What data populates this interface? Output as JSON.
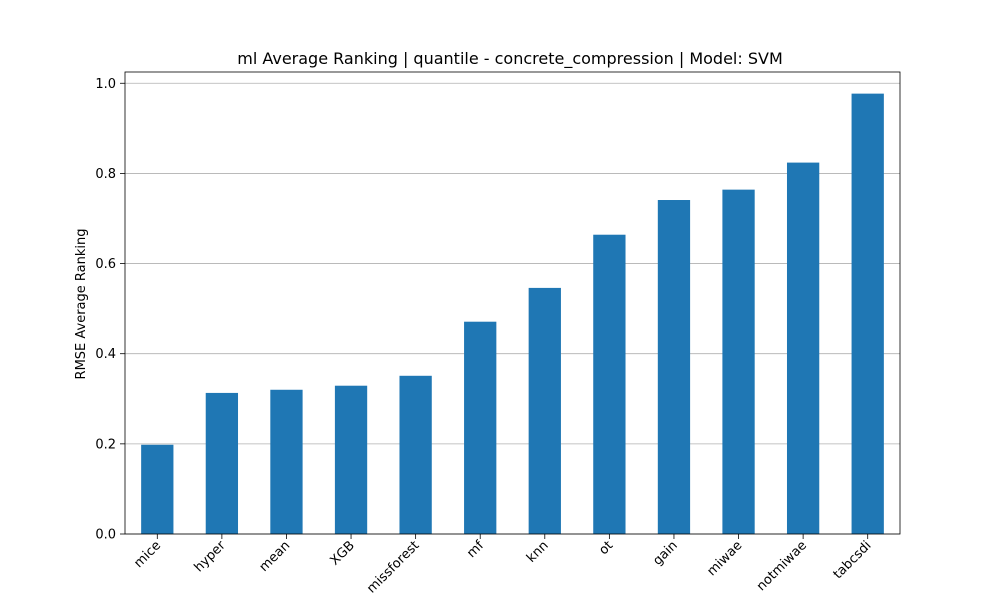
{
  "chart_data": {
    "type": "bar",
    "title": "ml Average Ranking | quantile - concrete_compression | Model: SVM",
    "xlabel": "",
    "ylabel": "RMSE Average Ranking",
    "categories": [
      "mice",
      "hyper",
      "mean",
      "XGB",
      "missforest",
      "mf",
      "knn",
      "ot",
      "gain",
      "miwae",
      "notmiwae",
      "tabcsdi"
    ],
    "values": [
      0.198,
      0.313,
      0.32,
      0.329,
      0.351,
      0.471,
      0.546,
      0.664,
      0.741,
      0.764,
      0.824,
      0.977
    ],
    "ylim": [
      0,
      1.025
    ],
    "yticks": [
      "0.0",
      "0.2",
      "0.4",
      "0.6",
      "0.8",
      "1.0"
    ],
    "grid": "y",
    "bar_color": "#1f77b4"
  }
}
